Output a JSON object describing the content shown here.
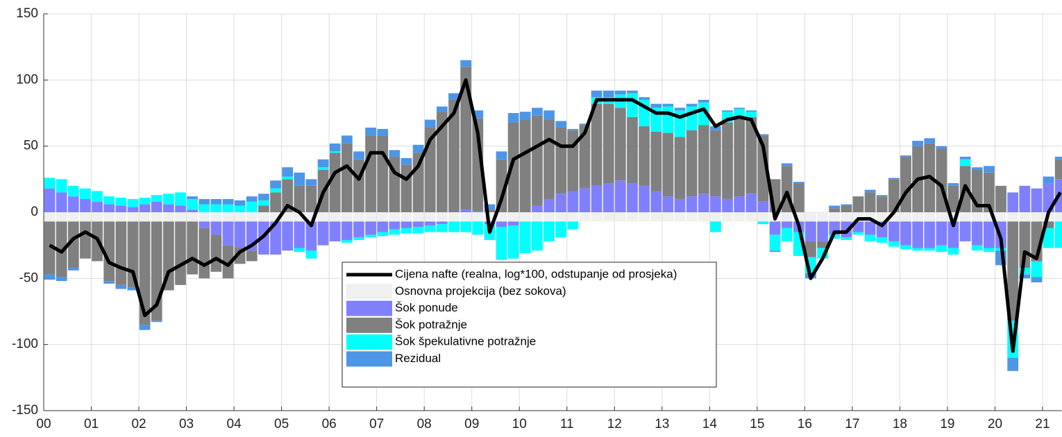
{
  "chart_data": {
    "type": "stacked-bar-line",
    "x": [
      0.125,
      0.375,
      0.625,
      0.875,
      1.125,
      1.375,
      1.625,
      1.875,
      2.125,
      2.375,
      2.625,
      2.875,
      3.125,
      3.375,
      3.625,
      3.875,
      4.125,
      4.375,
      4.625,
      4.875,
      5.125,
      5.375,
      5.625,
      5.875,
      6.125,
      6.375,
      6.625,
      6.875,
      7.125,
      7.375,
      7.625,
      7.875,
      8.125,
      8.375,
      8.625,
      8.875,
      9.125,
      9.375,
      9.625,
      9.875,
      10.125,
      10.375,
      10.625,
      10.875,
      11.125,
      11.375,
      11.625,
      11.875,
      12.125,
      12.375,
      12.625,
      12.875,
      13.125,
      13.375,
      13.625,
      13.875,
      14.125,
      14.375,
      14.625,
      14.875,
      15.125,
      15.375,
      15.625,
      15.875,
      16.125,
      16.375,
      16.625,
      16.875,
      17.125,
      17.375,
      17.625,
      17.875,
      18.125,
      18.375,
      18.625,
      18.875,
      19.125,
      19.375,
      19.625,
      19.875,
      20.125,
      20.375,
      20.625,
      20.875,
      21.125,
      21.375
    ],
    "series": [
      {
        "name": "Osnovna projekcija (bez sokova)",
        "kind": "bar",
        "color": "#f0f0f0",
        "values": [
          -7,
          -7,
          -7,
          -7,
          -7,
          -7,
          -7,
          -7,
          -7,
          -7,
          -7,
          -7,
          -7,
          -7,
          -7,
          -7,
          -7,
          -7,
          -7,
          -7,
          -7,
          -7,
          -7,
          -7,
          -7,
          -7,
          -7,
          -7,
          -7,
          -7,
          -7,
          -7,
          -7,
          -7,
          -7,
          -7,
          -7,
          -7,
          -7,
          -7,
          -7,
          -7,
          -7,
          -7,
          -7,
          -7,
          -7,
          -7,
          -7,
          -7,
          -7,
          -7,
          -7,
          -7,
          -7,
          -7,
          -7,
          -7,
          -7,
          -7,
          -7,
          -7,
          -7,
          -7,
          -7,
          -7,
          -7,
          -7,
          -7,
          -7,
          -7,
          -7,
          -7,
          -7,
          -7,
          -7,
          -7,
          -7,
          -7,
          -7,
          -7,
          -7,
          -7,
          -7,
          -7,
          -7
        ]
      },
      {
        "name": "Šok ponude",
        "kind": "bar",
        "color": "#8080ff",
        "values": [
          18,
          15,
          12,
          10,
          8,
          6,
          5,
          4,
          6,
          8,
          6,
          5,
          2,
          -5,
          -10,
          -18,
          -20,
          -22,
          -25,
          -25,
          -22,
          -20,
          -22,
          -18,
          -15,
          -14,
          -12,
          -10,
          -8,
          -6,
          -5,
          -4,
          -3,
          -2,
          0,
          2,
          1,
          -2,
          -4,
          -3,
          0,
          5,
          10,
          14,
          16,
          18,
          20,
          22,
          24,
          22,
          20,
          16,
          12,
          10,
          12,
          14,
          12,
          10,
          12,
          14,
          8,
          -10,
          -5,
          -8,
          -15,
          -15,
          -10,
          -12,
          -8,
          -10,
          -12,
          -15,
          -18,
          -20,
          -20,
          -18,
          -20,
          -15,
          -18,
          -20,
          -20,
          15,
          20,
          18,
          22,
          25
        ]
      },
      {
        "name": "Šok potražnje",
        "kind": "bar",
        "color": "#808080",
        "values": [
          -40,
          -42,
          -35,
          -28,
          -30,
          -45,
          -48,
          -50,
          -78,
          -75,
          -52,
          -48,
          -40,
          -38,
          -28,
          -25,
          -12,
          -8,
          5,
          15,
          25,
          20,
          20,
          32,
          45,
          52,
          40,
          58,
          58,
          42,
          36,
          45,
          64,
          76,
          85,
          108,
          70,
          2,
          40,
          68,
          70,
          68,
          60,
          50,
          46,
          48,
          62,
          60,
          55,
          50,
          45,
          45,
          48,
          47,
          50,
          52,
          50,
          58,
          60,
          58,
          50,
          25,
          35,
          22,
          -12,
          -5,
          3,
          5,
          12,
          15,
          12,
          25,
          42,
          50,
          52,
          48,
          20,
          35,
          32,
          30,
          20,
          -75,
          -35,
          -30,
          -5,
          15
        ]
      },
      {
        "name": "Šok špekulativne potražnje",
        "kind": "bar",
        "color": "#00ffff",
        "values": [
          8,
          10,
          8,
          8,
          8,
          6,
          6,
          6,
          5,
          5,
          8,
          10,
          8,
          6,
          6,
          6,
          5,
          8,
          4,
          3,
          2,
          -3,
          -6,
          2,
          1,
          -2,
          -2,
          -2,
          -3,
          -4,
          -4,
          -5,
          -5,
          -6,
          -8,
          -8,
          -10,
          -12,
          -25,
          -25,
          -24,
          -22,
          -15,
          -12,
          -6,
          0,
          5,
          5,
          10,
          18,
          20,
          18,
          20,
          20,
          18,
          17,
          -8,
          8,
          6,
          4,
          -2,
          -12,
          -10,
          -18,
          -12,
          -8,
          -3,
          -2,
          -2,
          -5,
          -4,
          -4,
          -3,
          -2,
          -2,
          -5,
          -5,
          5,
          -4,
          -3,
          -2,
          -28,
          -5,
          -12,
          -15,
          -20
        ]
      },
      {
        "name": "Rezidual",
        "kind": "bar",
        "color": "#4d96e6",
        "values": [
          -4,
          -3,
          -2,
          0,
          0,
          -2,
          -3,
          -2,
          -4,
          -1,
          0,
          0,
          2,
          4,
          4,
          4,
          4,
          4,
          5,
          6,
          7,
          10,
          5,
          6,
          6,
          6,
          6,
          6,
          5,
          5,
          5,
          6,
          6,
          4,
          5,
          5,
          6,
          4,
          6,
          7,
          6,
          6,
          7,
          5,
          1,
          1,
          5,
          5,
          3,
          2,
          2,
          3,
          2,
          2,
          2,
          2,
          3,
          1,
          1,
          1,
          1,
          -1,
          2,
          1,
          -4,
          0,
          2,
          1,
          0,
          2,
          1,
          1,
          1,
          4,
          4,
          2,
          2,
          2,
          2,
          5,
          -11,
          -10,
          -3,
          -4,
          5,
          2
        ]
      },
      {
        "name": "Cijena nafte (realna, log*100, odstupanje od prosjeka)",
        "kind": "line",
        "color": "#000000",
        "values": [
          -25,
          -30,
          -20,
          -15,
          -20,
          -38,
          -42,
          -45,
          -78,
          -70,
          -45,
          -40,
          -35,
          -40,
          -35,
          -40,
          -30,
          -25,
          -18,
          -8,
          5,
          0,
          -10,
          15,
          30,
          35,
          25,
          45,
          45,
          30,
          25,
          35,
          55,
          65,
          75,
          100,
          60,
          -15,
          10,
          40,
          45,
          50,
          55,
          50,
          50,
          60,
          85,
          85,
          85,
          85,
          80,
          75,
          75,
          72,
          75,
          78,
          65,
          70,
          72,
          70,
          50,
          -5,
          15,
          -10,
          -50,
          -35,
          -15,
          -15,
          -5,
          -5,
          -10,
          0,
          15,
          25,
          27,
          20,
          -10,
          20,
          5,
          5,
          -20,
          -105,
          -30,
          -35,
          0,
          15
        ]
      }
    ],
    "legend_order": [
      5,
      0,
      1,
      2,
      3,
      4
    ],
    "xlim": [
      0,
      21.4
    ],
    "xticks": [
      {
        "value": 0,
        "label": "00"
      },
      {
        "value": 1,
        "label": "01"
      },
      {
        "value": 2,
        "label": "02"
      },
      {
        "value": 3,
        "label": "03"
      },
      {
        "value": 4,
        "label": "04"
      },
      {
        "value": 5,
        "label": "05"
      },
      {
        "value": 6,
        "label": "06"
      },
      {
        "value": 7,
        "label": "07"
      },
      {
        "value": 8,
        "label": "08"
      },
      {
        "value": 9,
        "label": "09"
      },
      10,
      11,
      12,
      13,
      14,
      15,
      16,
      17,
      18,
      19,
      20,
      21
    ],
    "ylim": [
      -150,
      150
    ],
    "yticks": [
      -150,
      -100,
      -50,
      0,
      50,
      100,
      150
    ],
    "grid": true
  }
}
